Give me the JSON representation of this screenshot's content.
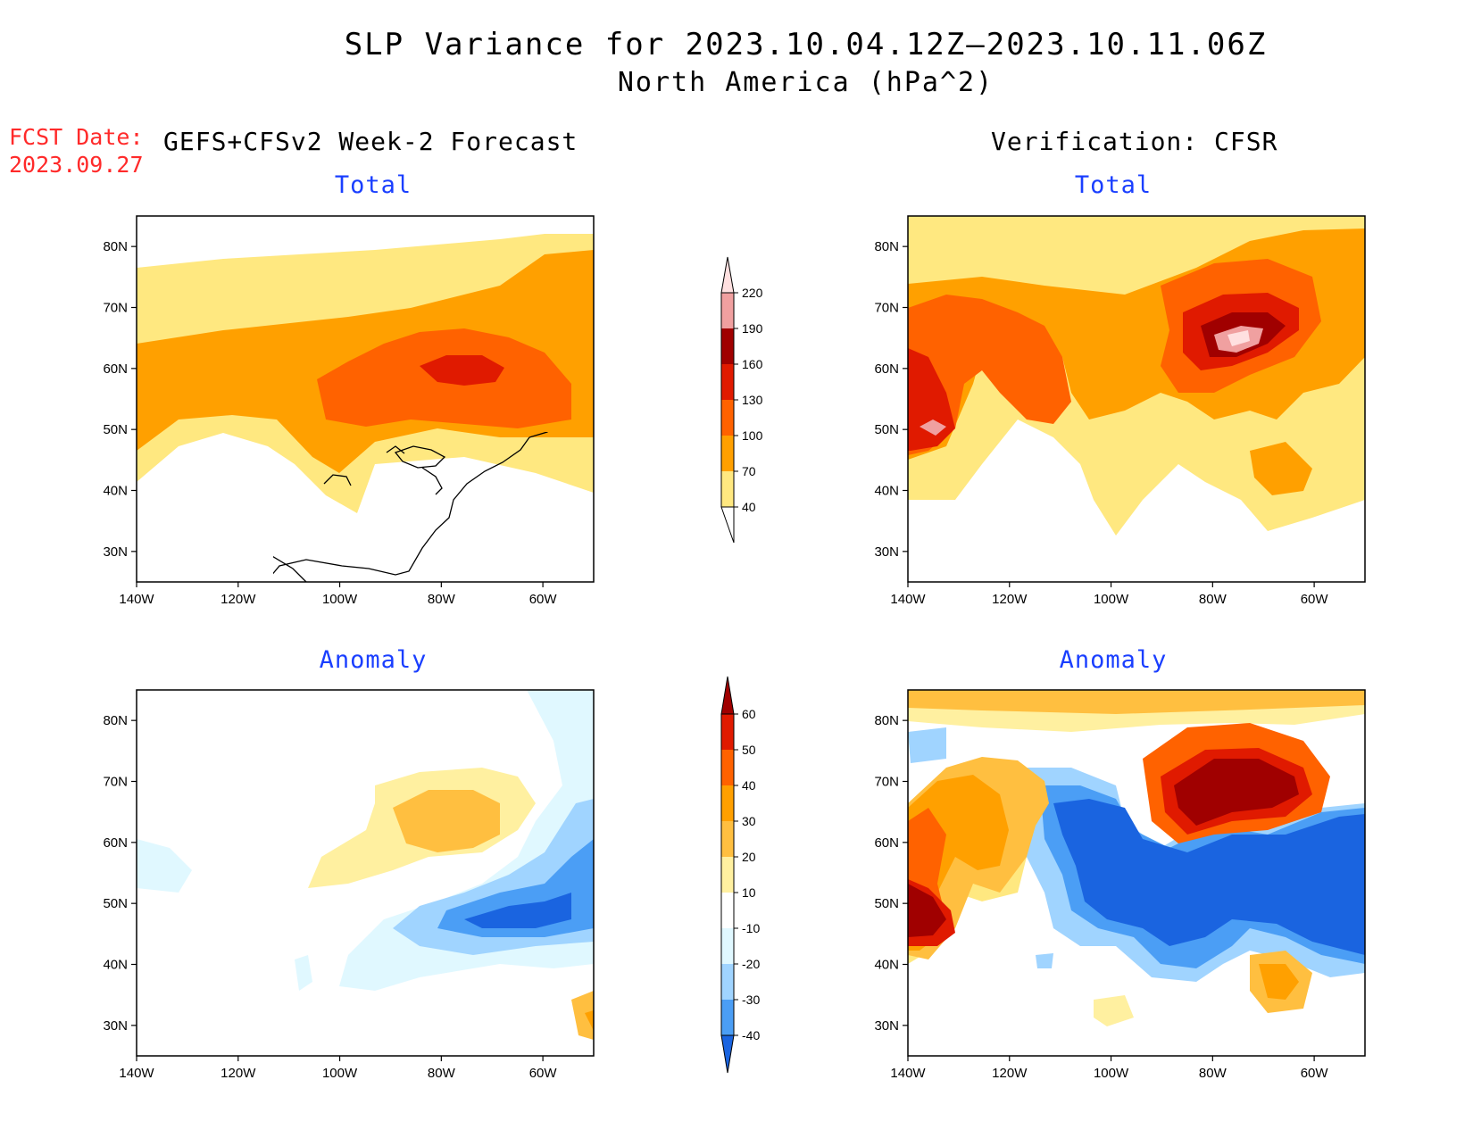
{
  "header": {
    "title": "SLP Variance for 2023.10.04.12Z–2023.10.11.06Z",
    "subtitle": "North America (hPa^2)",
    "fcst_label": "FCST Date:",
    "fcst_date": "2023.09.27",
    "left_column": "GEFS+CFSv2 Week-2 Forecast",
    "right_column": "Verification: CFSR"
  },
  "panels": {
    "forecast_total": "Total",
    "forecast_anomaly": "Anomaly",
    "verification_total": "Total",
    "verification_anomaly": "Anomaly"
  },
  "axes": {
    "lon_labels": [
      "140W",
      "120W",
      "100W",
      "80W",
      "60W"
    ],
    "lat_labels": [
      "80N",
      "70N",
      "60N",
      "50N",
      "40N",
      "30N"
    ],
    "lon_range": [
      -140,
      -50
    ],
    "lat_range": [
      25,
      85
    ]
  },
  "colorbars": {
    "total": {
      "levels": [
        "40",
        "70",
        "100",
        "130",
        "160",
        "190",
        "220"
      ],
      "colors": [
        "#ffe880",
        "#ffa000",
        "#ff6200",
        "#e01a00",
        "#a00000",
        "#f0a0a0",
        "#ffe0e0"
      ]
    },
    "anomaly": {
      "levels": [
        "60",
        "50",
        "40",
        "30",
        "20",
        "10",
        "-10",
        "-20",
        "-30",
        "-40"
      ],
      "colors": [
        "#a00000",
        "#e01a00",
        "#ff6200",
        "#ffa000",
        "#ffbf40",
        "#fff0a0",
        "#ffffff",
        "#e0f8ff",
        "#a0d4ff",
        "#4b9ef5",
        "#1a64e0"
      ]
    }
  }
}
